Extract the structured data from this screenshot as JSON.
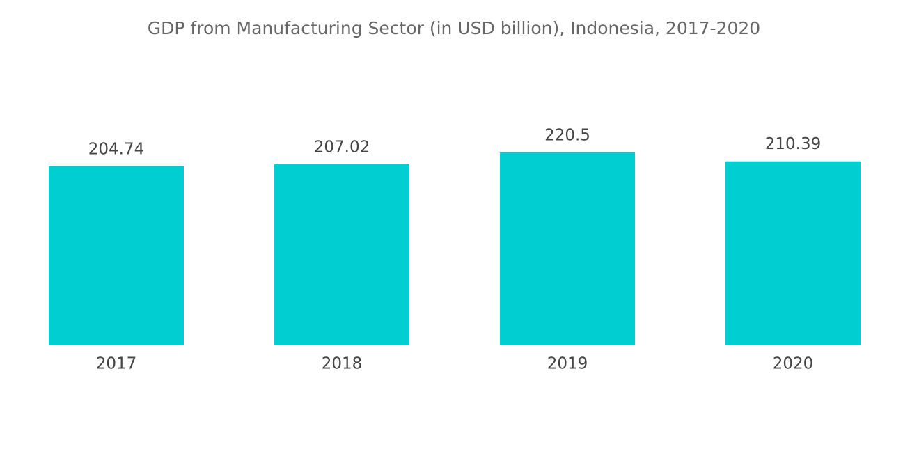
{
  "chart_data": {
    "type": "bar",
    "title": "GDP from Manufacturing Sector (in USD billion), Indonesia, 2017-2020",
    "categories": [
      "2017",
      "2018",
      "2019",
      "2020"
    ],
    "values": [
      204.74,
      207.02,
      220.5,
      210.39
    ],
    "color": "#00ced1"
  }
}
